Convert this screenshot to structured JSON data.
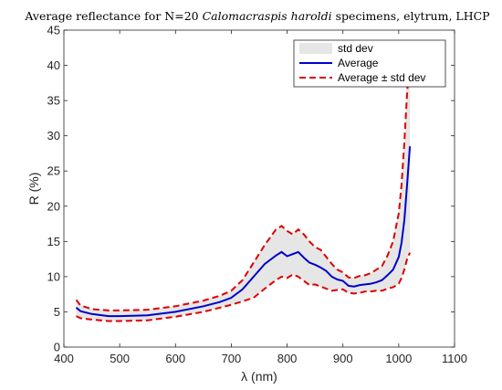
{
  "chart_data": {
    "type": "line",
    "title": {
      "prefix": "Average reflectance for N=20 ",
      "species": "Calomacraspis haroldi",
      "suffix": " specimens, elytrum, LHCP"
    },
    "xlabel": "λ (nm)",
    "ylabel": "R (%)",
    "xlim": [
      400,
      1100
    ],
    "ylim": [
      0,
      45
    ],
    "xticks": [
      400,
      500,
      600,
      700,
      800,
      900,
      1000,
      1100
    ],
    "yticks": [
      0,
      5,
      10,
      15,
      20,
      25,
      30,
      35,
      40,
      45
    ],
    "grid": false,
    "legend": {
      "placement": "top-right",
      "entries": [
        "std dev",
        "Average",
        "Average ± std dev"
      ]
    },
    "colors": {
      "band": "#e6e6e6",
      "average": "#0000cc",
      "bounds": "#dd0000"
    },
    "x": [
      422,
      430,
      450,
      480,
      500,
      550,
      600,
      650,
      680,
      700,
      720,
      740,
      760,
      780,
      790,
      800,
      810,
      820,
      830,
      840,
      850,
      860,
      870,
      880,
      890,
      900,
      910,
      920,
      930,
      940,
      950,
      960,
      970,
      980,
      990,
      1000,
      1005,
      1010,
      1015,
      1020
    ],
    "series": [
      {
        "name": "Average",
        "values": [
          5.6,
          5.1,
          4.7,
          4.4,
          4.4,
          4.5,
          5.0,
          5.8,
          6.4,
          7.0,
          8.2,
          10.0,
          11.8,
          13.0,
          13.5,
          12.9,
          13.2,
          13.5,
          12.7,
          12.0,
          11.7,
          11.3,
          10.8,
          10.0,
          9.6,
          9.4,
          8.7,
          8.6,
          8.8,
          8.9,
          9.0,
          9.2,
          9.5,
          10.2,
          11.0,
          12.8,
          14.8,
          18.0,
          23.0,
          28.5
        ]
      },
      {
        "name": "Average + std dev",
        "values": [
          6.7,
          5.9,
          5.4,
          5.2,
          5.2,
          5.3,
          5.8,
          6.6,
          7.3,
          8.0,
          9.5,
          12.0,
          14.5,
          16.7,
          17.2,
          16.5,
          16.0,
          16.7,
          16.0,
          15.0,
          14.2,
          13.8,
          12.8,
          11.8,
          11.0,
          10.6,
          9.9,
          9.8,
          10.1,
          10.2,
          10.5,
          11.0,
          11.5,
          13.0,
          15.0,
          19.0,
          23.0,
          29.0,
          36.0,
          42.0
        ]
      },
      {
        "name": "Average - std dev",
        "values": [
          4.4,
          4.1,
          3.9,
          3.7,
          3.7,
          3.8,
          4.3,
          5.0,
          5.6,
          6.0,
          6.5,
          7.0,
          8.3,
          9.5,
          10.0,
          9.8,
          10.3,
          10.0,
          9.4,
          8.8,
          8.9,
          8.6,
          8.3,
          8.0,
          8.1,
          8.2,
          7.7,
          7.6,
          7.7,
          7.9,
          7.9,
          8.0,
          8.0,
          8.3,
          8.5,
          9.0,
          9.8,
          11.0,
          12.5,
          13.4
        ]
      }
    ]
  }
}
